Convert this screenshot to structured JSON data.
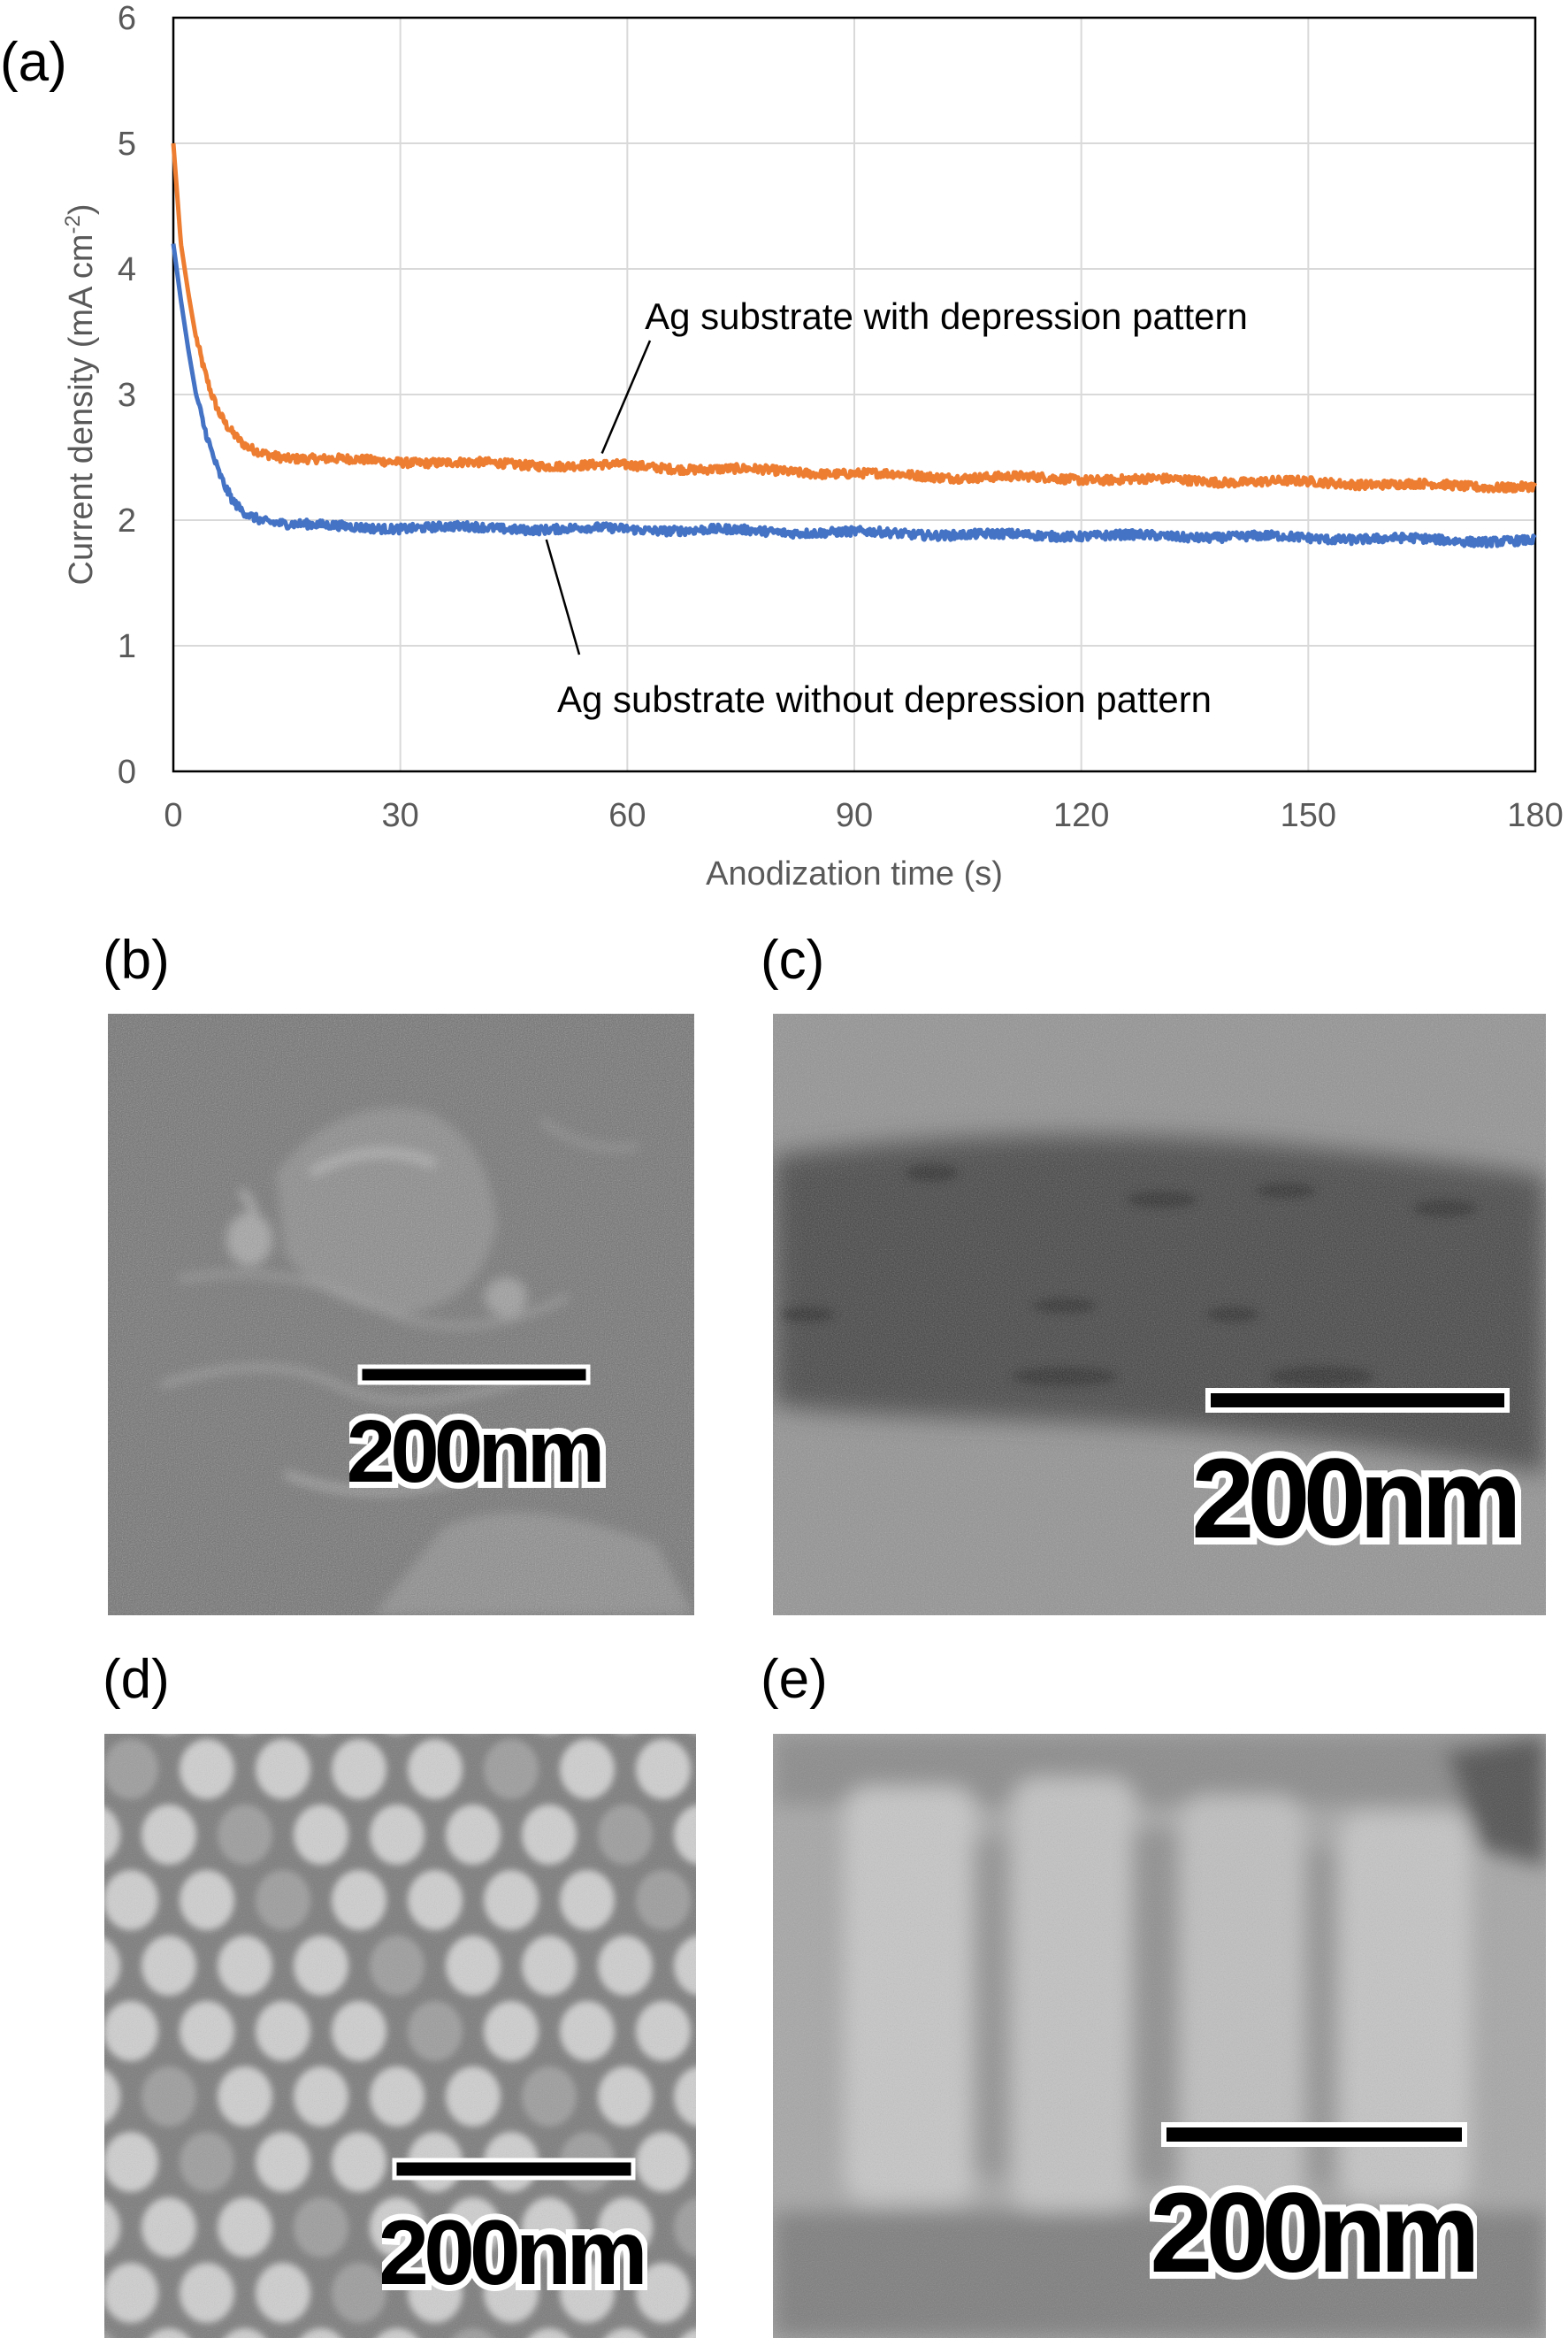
{
  "panels": {
    "a": "(a)",
    "b": "(b)",
    "c": "(c)",
    "d": "(d)",
    "e": "(e)"
  },
  "scale_bar": "200nm",
  "chart_data": {
    "type": "line",
    "xlabel": "Anodization time (s)",
    "ylabel": "Current density (mA cm",
    "ylabel_sup": "-2",
    "ylabel_end": ")",
    "xlim": [
      0,
      180
    ],
    "ylim": [
      0,
      6
    ],
    "xticks": [
      0,
      30,
      60,
      90,
      120,
      150,
      180
    ],
    "yticks": [
      0,
      1,
      2,
      3,
      4,
      5,
      6
    ],
    "grid": true,
    "series": [
      {
        "name": "Ag substrate with depression pattern",
        "color": "#ed7d31",
        "x": [
          0,
          1,
          2,
          3,
          4,
          5,
          6,
          7,
          8,
          9,
          10,
          12,
          15,
          20,
          30,
          40,
          50,
          60,
          70,
          80,
          90,
          100,
          110,
          120,
          130,
          140,
          150,
          160,
          170,
          180
        ],
        "y": [
          5.0,
          4.2,
          3.8,
          3.45,
          3.2,
          3.0,
          2.85,
          2.75,
          2.68,
          2.62,
          2.58,
          2.54,
          2.5,
          2.48,
          2.47,
          2.45,
          2.44,
          2.43,
          2.41,
          2.39,
          2.37,
          2.35,
          2.34,
          2.33,
          2.32,
          2.31,
          2.3,
          2.29,
          2.27,
          2.27
        ]
      },
      {
        "name": "Ag substrate without depression pattern",
        "color": "#4472c4",
        "x": [
          0,
          1,
          2,
          3,
          4,
          5,
          6,
          7,
          8,
          9,
          10,
          12,
          15,
          20,
          30,
          40,
          50,
          60,
          70,
          80,
          90,
          100,
          110,
          120,
          130,
          140,
          150,
          160,
          170,
          180
        ],
        "y": [
          4.2,
          3.75,
          3.35,
          3.0,
          2.75,
          2.55,
          2.38,
          2.25,
          2.15,
          2.09,
          2.05,
          2.0,
          1.97,
          1.95,
          1.94,
          1.94,
          1.93,
          1.93,
          1.92,
          1.91,
          1.9,
          1.89,
          1.88,
          1.88,
          1.87,
          1.87,
          1.86,
          1.85,
          1.84,
          1.83
        ]
      }
    ],
    "annotations": [
      {
        "text": "Ag substrate with depression pattern",
        "series": 0,
        "x": 57
      },
      {
        "text": "Ag substrate without depression pattern",
        "series": 1,
        "x": 50
      }
    ]
  }
}
